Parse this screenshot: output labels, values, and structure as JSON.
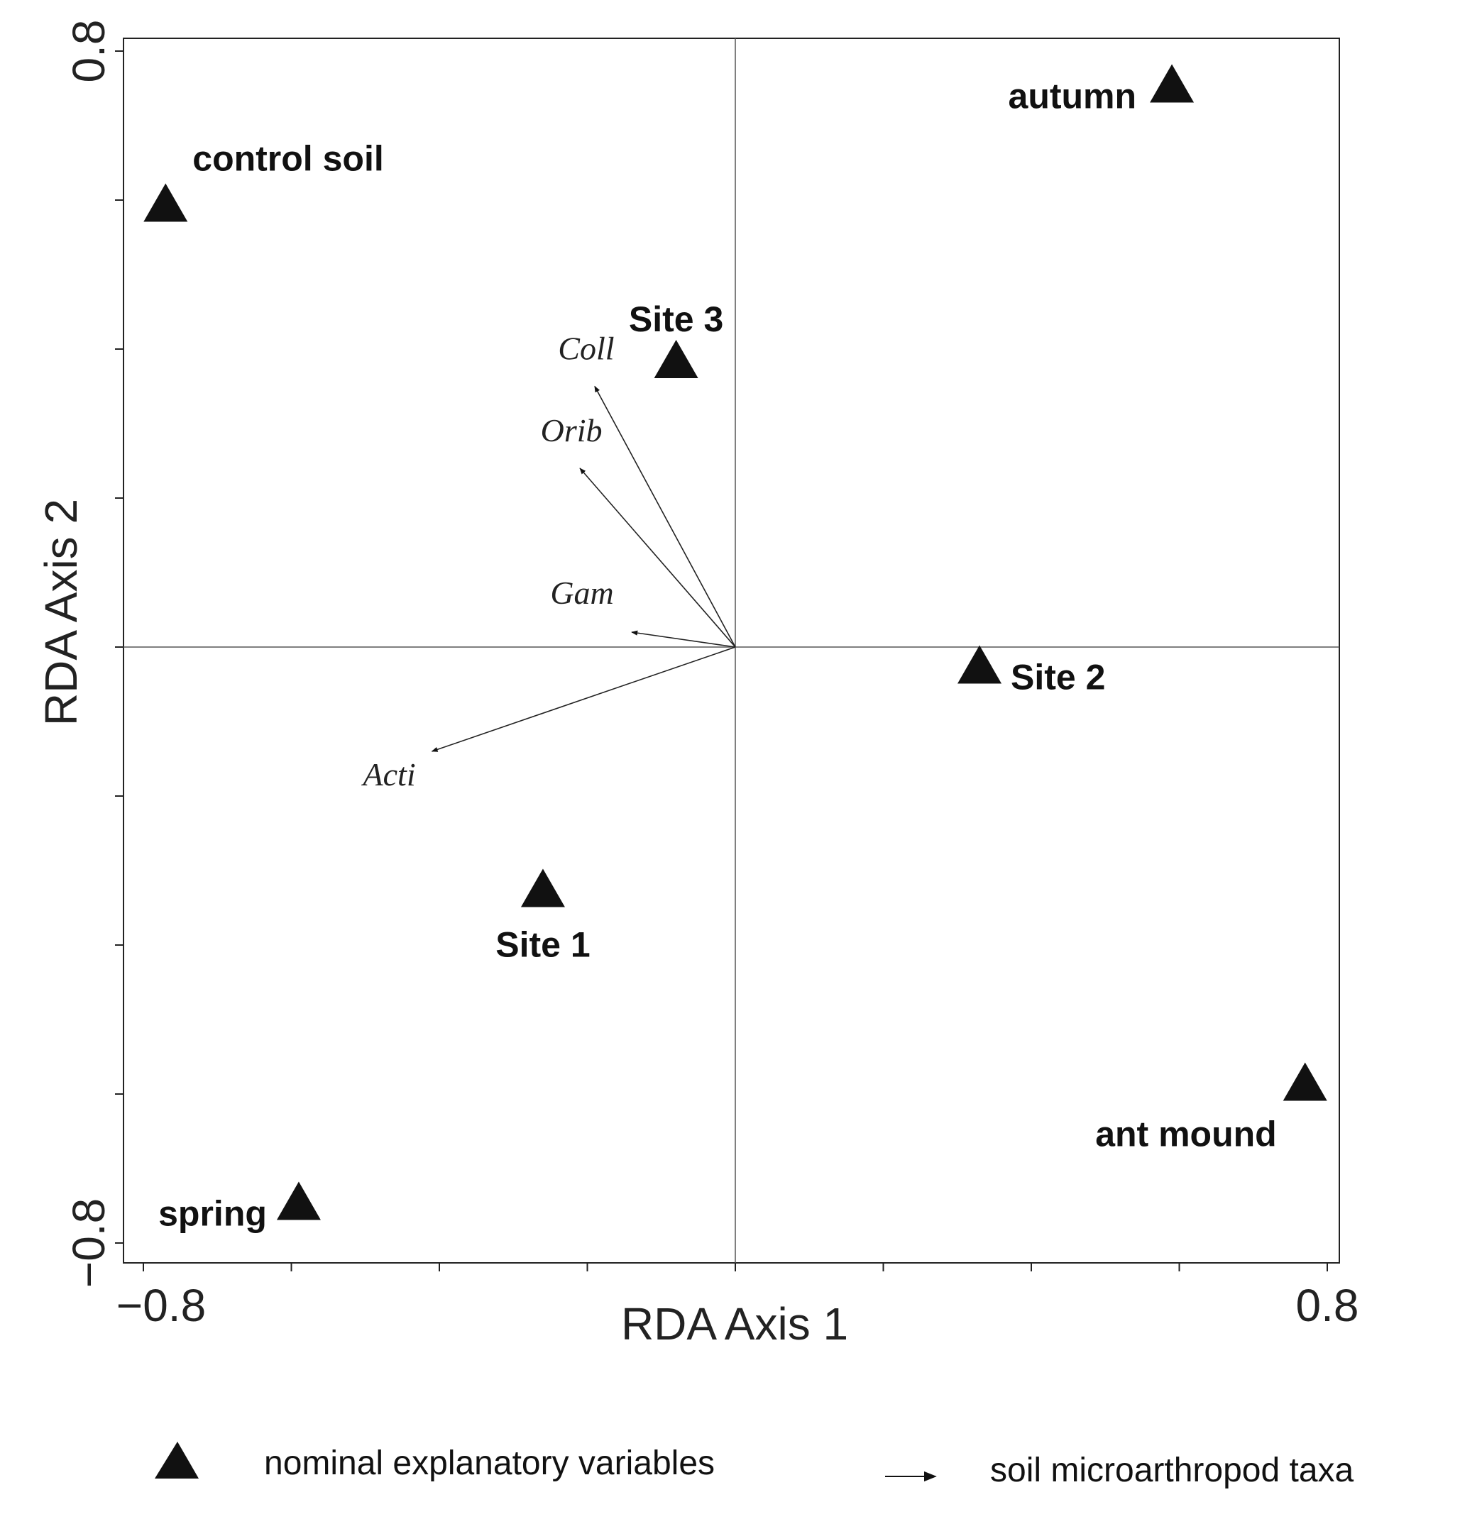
{
  "chart_data": {
    "type": "scatter",
    "subtype": "rda-biplot",
    "title": "",
    "xlabel": "RDA Axis 1",
    "ylabel": "RDA Axis 2",
    "xlim": [
      -0.8,
      0.8
    ],
    "ylim": [
      -0.8,
      0.8
    ],
    "xtick_labels": [
      {
        "value": -0.8,
        "label": "−0.8"
      },
      {
        "value": 0.8,
        "label": "0.8"
      }
    ],
    "ytick_labels": [
      {
        "value": 0.8,
        "label": "0.8"
      },
      {
        "value": -0.8,
        "label": "−0.8"
      }
    ],
    "xticks_minor": [
      -0.8,
      -0.6,
      -0.4,
      -0.2,
      0.0,
      0.2,
      0.4,
      0.6,
      0.8
    ],
    "yticks_minor": [
      0.8,
      0.6,
      0.4,
      0.2,
      0.0,
      -0.2,
      -0.4,
      -0.6,
      -0.8
    ],
    "centroids": [
      {
        "name": "control soil",
        "x": -0.77,
        "y": 0.59
      },
      {
        "name": "autumn",
        "x": 0.59,
        "y": 0.75
      },
      {
        "name": "Site 3",
        "x": -0.08,
        "y": 0.38
      },
      {
        "name": "Site 2",
        "x": 0.33,
        "y": -0.03
      },
      {
        "name": "Site 1",
        "x": -0.26,
        "y": -0.33
      },
      {
        "name": "ant  mound",
        "x": 0.77,
        "y": -0.59
      },
      {
        "name": "spring",
        "x": -0.59,
        "y": -0.75
      }
    ],
    "arrows": [
      {
        "name": "Coll",
        "x": -0.19,
        "y": 0.35
      },
      {
        "name": "Orib",
        "x": -0.21,
        "y": 0.24
      },
      {
        "name": "Gam",
        "x": -0.14,
        "y": 0.02
      },
      {
        "name": "Acti",
        "x": -0.41,
        "y": -0.14
      }
    ],
    "legend": [
      {
        "symbol": "triangle",
        "label": "nominal explanatory variables"
      },
      {
        "symbol": "arrow",
        "label": "soil microarthropod taxa"
      }
    ]
  }
}
